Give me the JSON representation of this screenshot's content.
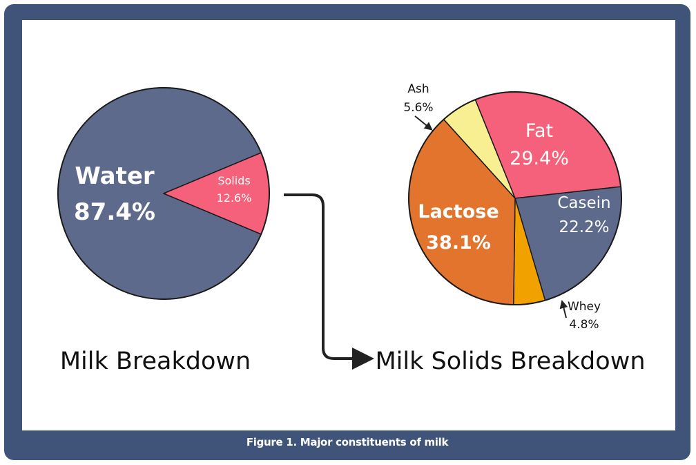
{
  "caption": "Figure 1. Major constituents of milk",
  "colors": {
    "frame": "#3f5478",
    "water": "#5e6a8c",
    "solids": "#f5607a",
    "fat": "#f5607a",
    "casein": "#5e6a8c",
    "whey": "#f2a200",
    "lactose": "#e2742e",
    "ash": "#f8ef92",
    "arrow": "#222222"
  },
  "chart_data": [
    {
      "type": "pie",
      "title": "Milk Breakdown",
      "slices": [
        {
          "label": "Water",
          "value": 87.4,
          "display": "87.4%"
        },
        {
          "label": "Solids",
          "value": 12.6,
          "display": "12.6%"
        }
      ]
    },
    {
      "type": "pie",
      "title": "Milk Solids Breakdown",
      "slices": [
        {
          "label": "Fat",
          "value": 29.4,
          "display": "29.4%"
        },
        {
          "label": "Casein",
          "value": 22.2,
          "display": "22.2%"
        },
        {
          "label": "Whey",
          "value": 4.8,
          "display": "4.8%"
        },
        {
          "label": "Lactose",
          "value": 38.1,
          "display": "38.1%"
        },
        {
          "label": "Ash",
          "value": 5.6,
          "display": "5.6%"
        }
      ]
    }
  ]
}
